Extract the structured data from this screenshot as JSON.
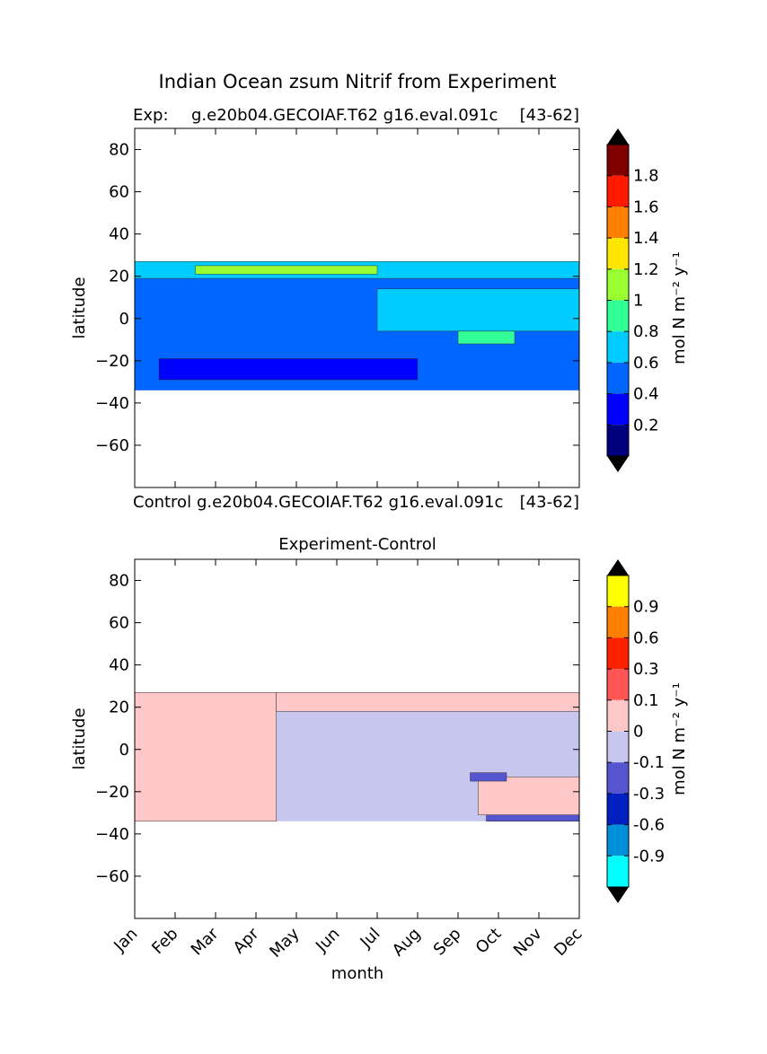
{
  "figure": {
    "title": "Indian Ocean zsum Nitrif from Experiment"
  },
  "top": {
    "label_left": "Exp:",
    "label_mid": "g.e20b04.GECOIAF.T62 g16.eval.091c",
    "label_right": "[43-62]",
    "ylabel": "latitude",
    "colorbar_label": "mol N m⁻² y⁻¹"
  },
  "middle_label": {
    "left": "Control",
    "mid": "g.e20b04.GECOIAF.T62 g16.eval.091c",
    "right": "[43-62]"
  },
  "bottom": {
    "title": "Experiment-Control",
    "ylabel": "latitude",
    "xlabel": "month",
    "colorbar_label": "mol N m⁻² y⁻¹"
  },
  "chart_data": [
    {
      "type": "contourf",
      "title": "Exp: g.e20b04.GECOIAF.T62 g16.eval.091c [43-62]",
      "xlabel": "month",
      "ylabel": "latitude",
      "ylim": [
        -80,
        90
      ],
      "yticks": [
        80,
        60,
        40,
        20,
        0,
        -20,
        -40,
        -60
      ],
      "xlim": [
        0,
        11
      ],
      "data_lat_range": [
        -34,
        27
      ],
      "colorbar": {
        "levels": [
          0.2,
          0.4,
          0.6,
          0.8,
          1,
          1.2,
          1.4,
          1.6,
          1.8
        ],
        "tick_labels": [
          "1.8",
          "1.6",
          "1.4",
          "1.2",
          "1",
          "0.8",
          "0.6",
          "0.4",
          "0.2"
        ],
        "colors": [
          "#00007f",
          "#0000ff",
          "#0066ff",
          "#00ccff",
          "#33ff99",
          "#99ff33",
          "#ffe600",
          "#ff8000",
          "#ff1a00",
          "#800000"
        ],
        "extend": "both",
        "label": "mol N m^-2 y^-1"
      },
      "regions": [
        {
          "value": 0.5,
          "color": "#0066ff",
          "lat": [
            -34,
            27
          ],
          "months": [
            0,
            11
          ],
          "description": "background"
        },
        {
          "value": 0.7,
          "color": "#00ccff",
          "lat": [
            19,
            27
          ],
          "months": [
            0,
            11
          ]
        },
        {
          "value": 0.7,
          "color": "#00ccff",
          "lat": [
            -6,
            14
          ],
          "months": [
            6,
            11
          ]
        },
        {
          "value": 0.9,
          "color": "#33ff99",
          "lat": [
            -12,
            -6
          ],
          "months": [
            8,
            9.4
          ]
        },
        {
          "value": 0.3,
          "color": "#0000ff",
          "lat": [
            -29,
            -19
          ],
          "months": [
            0.6,
            7
          ]
        },
        {
          "value": 1.1,
          "color": "#99ff33",
          "lat": [
            21,
            25
          ],
          "months": [
            1.5,
            6
          ]
        }
      ]
    },
    {
      "type": "contourf",
      "title": "Experiment-Control",
      "xlabel": "month",
      "ylabel": "latitude",
      "ylim": [
        -80,
        90
      ],
      "yticks": [
        80,
        60,
        40,
        20,
        0,
        -20,
        -40,
        -60
      ],
      "categories": [
        "Jan",
        "Feb",
        "Mar",
        "Apr",
        "May",
        "Jun",
        "Jul",
        "Aug",
        "Sep",
        "Oct",
        "Nov",
        "Dec"
      ],
      "xlim": [
        0,
        11
      ],
      "data_lat_range": [
        -34,
        27
      ],
      "colorbar": {
        "levels": [
          -0.9,
          -0.6,
          -0.3,
          -0.1,
          0,
          0.1,
          0.3,
          0.6,
          0.9
        ],
        "tick_labels": [
          "0.9",
          "0.6",
          "0.3",
          "0.1",
          "0",
          "-0.1",
          "-0.3",
          "-0.6",
          "-0.9"
        ],
        "colors": [
          "#00ffff",
          "#0090d8",
          "#0020c0",
          "#5555d0",
          "#c6c6ee",
          "#ffc8c8",
          "#ff5555",
          "#ff2000",
          "#ff8000",
          "#ffff00"
        ],
        "extend": "both",
        "label": "mol N m^-2 y^-1"
      },
      "regions": [
        {
          "value": -0.05,
          "color": "#c6c6ee",
          "lat": [
            -34,
            27
          ],
          "months": [
            0,
            11
          ],
          "description": "background"
        },
        {
          "value": 0.05,
          "color": "#ffc8c8",
          "lat": [
            -34,
            27
          ],
          "months": [
            0,
            3.5
          ]
        },
        {
          "value": 0.05,
          "color": "#ffc8c8",
          "lat": [
            18,
            27
          ],
          "months": [
            3.5,
            11
          ]
        },
        {
          "value": 0.05,
          "color": "#ffc8c8",
          "lat": [
            -31,
            -13
          ],
          "months": [
            8.5,
            11
          ]
        },
        {
          "value": -0.2,
          "color": "#5555d0",
          "lat": [
            -15,
            -11
          ],
          "months": [
            8.3,
            9.2
          ]
        },
        {
          "value": -0.2,
          "color": "#5555d0",
          "lat": [
            -34,
            -31
          ],
          "months": [
            8.7,
            11
          ]
        }
      ]
    }
  ]
}
